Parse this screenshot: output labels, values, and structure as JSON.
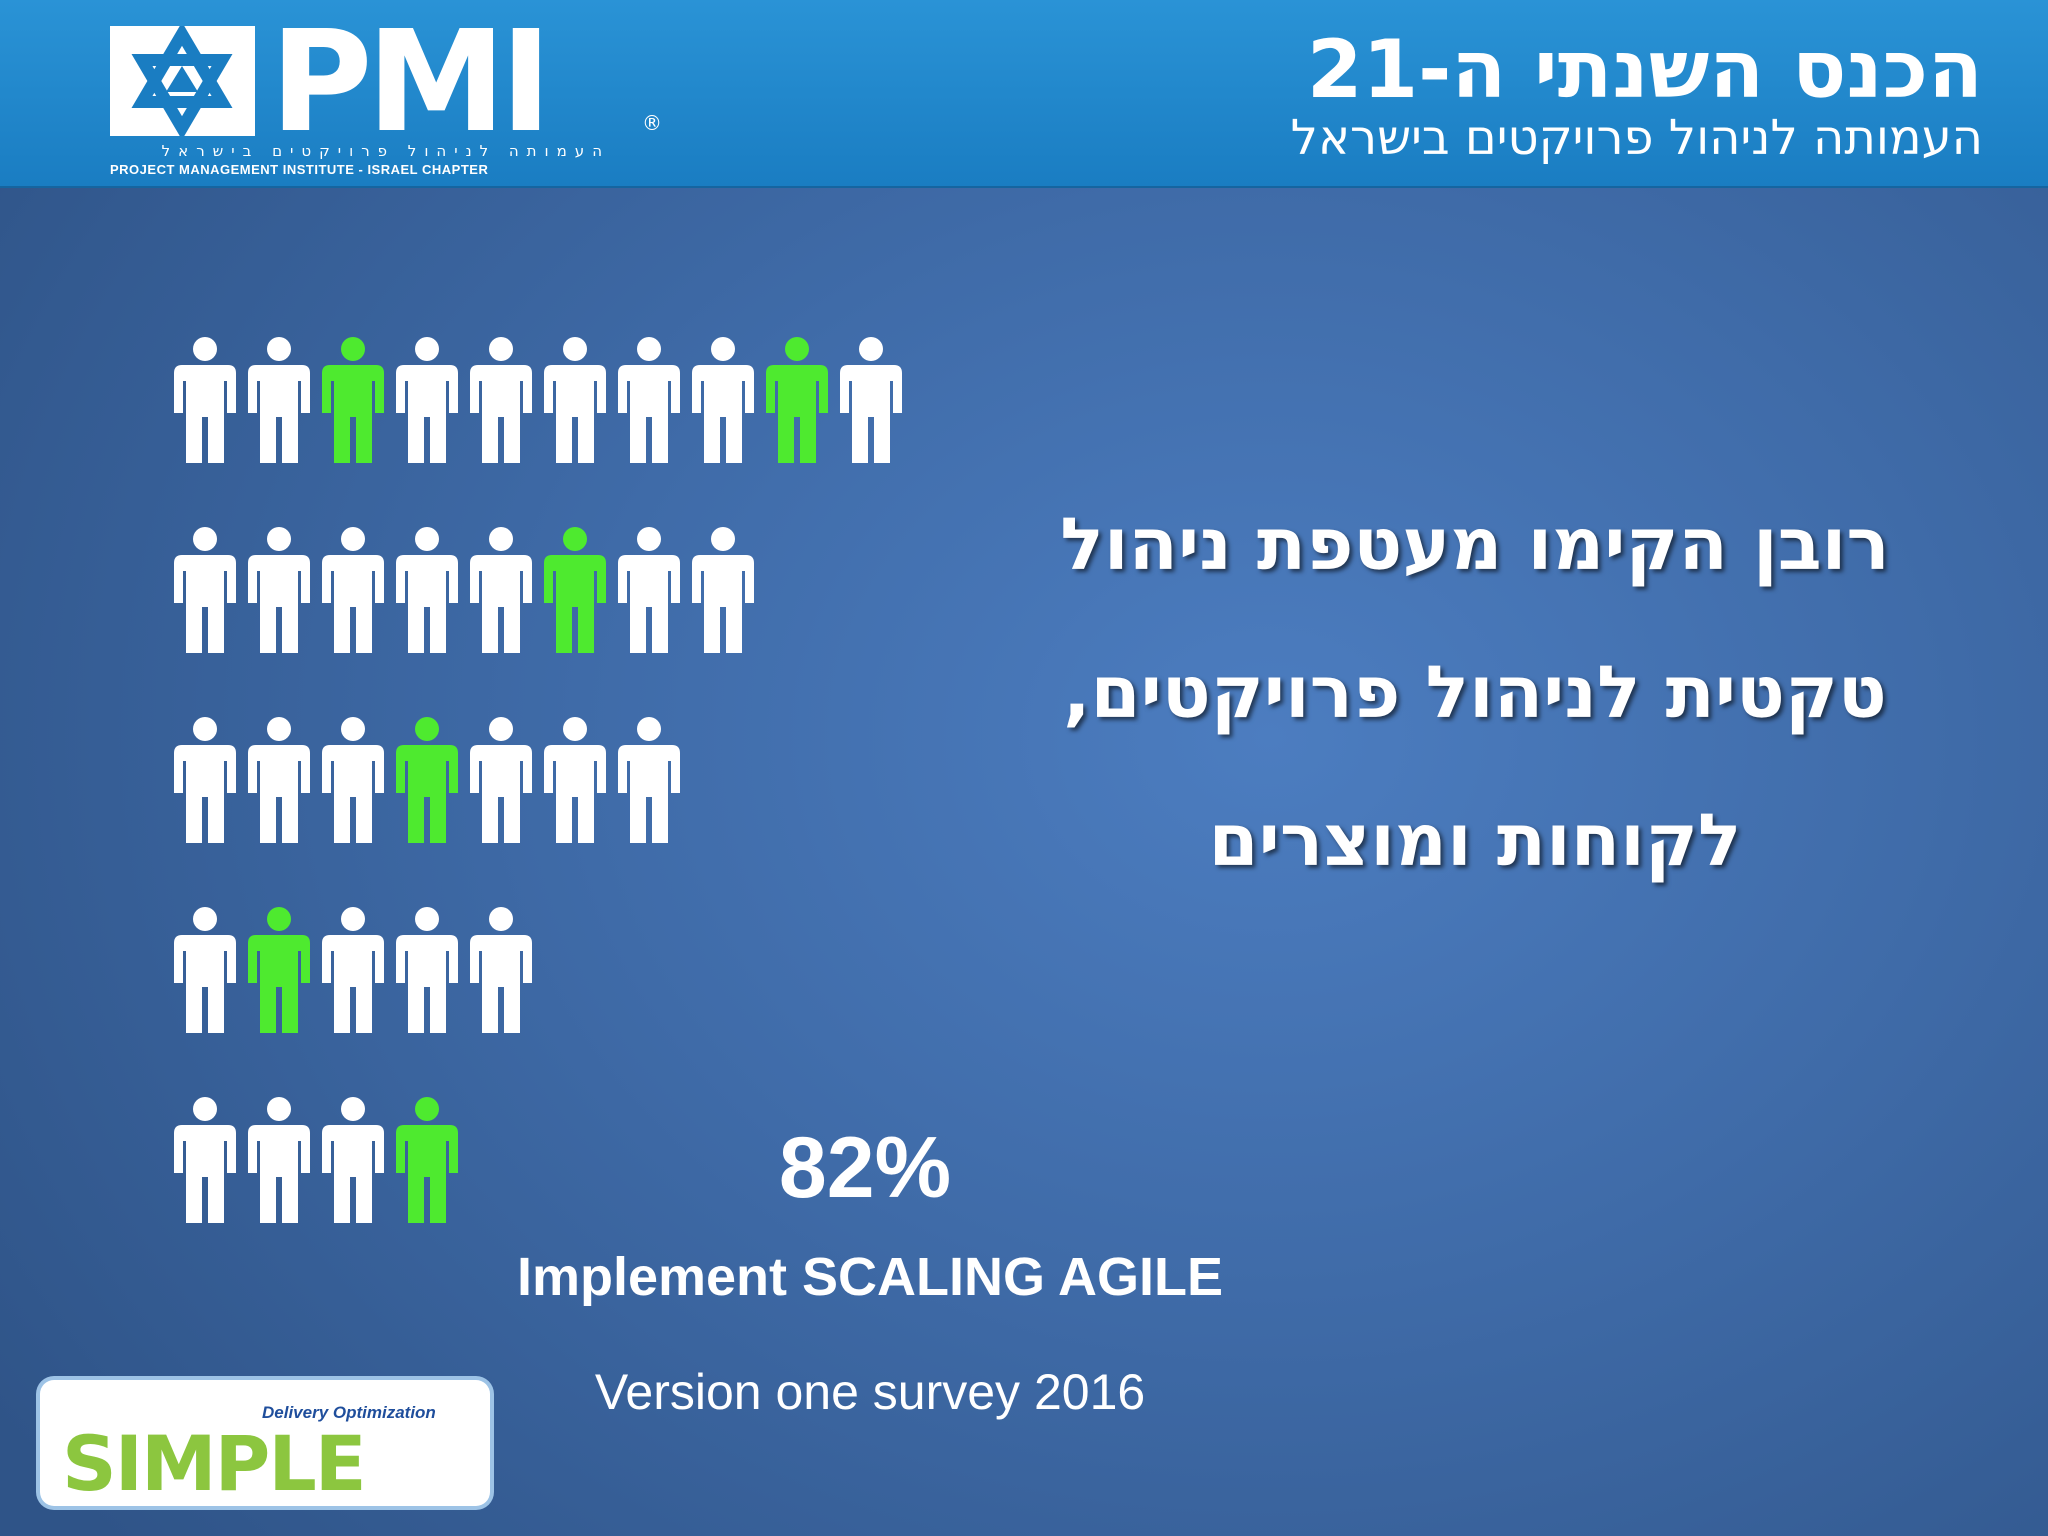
{
  "header": {
    "conference_title": "הכנס השנתי ה-21",
    "conference_subtitle": "העמותה לניהול פרויקטים בישראל",
    "logo": {
      "wordmark": "PMI",
      "registered_mark": "®",
      "tagline_hebrew": "העמותה לניהול פרויקטים בישראל",
      "tagline_english": "PROJECT MANAGEMENT INSTITUTE - ISRAEL CHAPTER"
    }
  },
  "headline": "רובן הקימו מעטפת ניהול טקטית לניהול פרויקטים, לקוחות ומוצרים",
  "stat": {
    "percent": "82%",
    "caption": "Implement SCALING AGILE",
    "source": "Version one survey 2016"
  },
  "pictogram": {
    "rows": [
      {
        "count": 10,
        "highlighted": [
          2,
          8
        ]
      },
      {
        "count": 8,
        "highlighted": [
          5
        ]
      },
      {
        "count": 7,
        "highlighted": [
          3
        ]
      },
      {
        "count": 5,
        "highlighted": [
          1
        ]
      },
      {
        "count": 4,
        "highlighted": [
          3
        ]
      }
    ],
    "colors": {
      "default": "#ffffff",
      "highlighted": "#4eea2f"
    }
  },
  "footer_logo": {
    "wordmark": "SIMPLE",
    "tagline": "Delivery Optimization",
    "colors": {
      "green": "#8cc63f",
      "blue": "#1f4e9c"
    }
  }
}
